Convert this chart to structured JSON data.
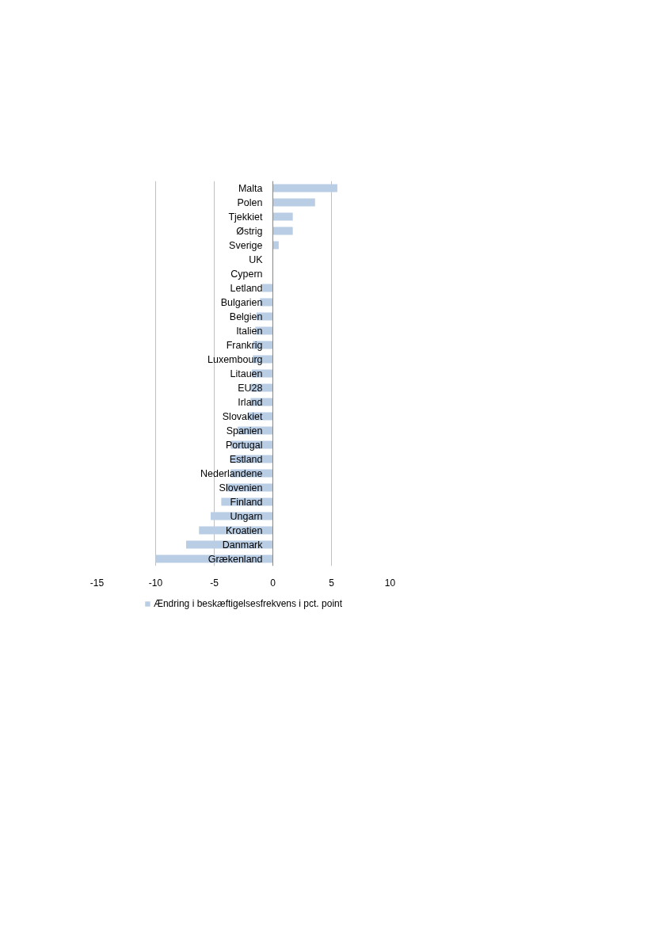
{
  "chart_data": {
    "type": "bar",
    "orientation": "horizontal",
    "categories": [
      "Malta",
      "Polen",
      "Tjekkiet",
      "Østrig",
      "Sverige",
      "UK",
      "Cypern",
      "Letland",
      "Bulgarien",
      "Belgien",
      "Italien",
      "Frankrig",
      "Luxembourg",
      "Litauen",
      "EU28",
      "Irland",
      "Slovakiet",
      "Spanien",
      "Portugal",
      "Estland",
      "Nederlandene",
      "Slovenien",
      "Finland",
      "Ungarn",
      "Kroatien",
      "Danmark",
      "Grækenland"
    ],
    "series": [
      {
        "name": "Ændring i beskæftigelsesfrekvens i pct. point",
        "color": "#b9cde5",
        "values": [
          5.5,
          3.6,
          1.7,
          1.7,
          0.5,
          0,
          0,
          -0.9,
          -1.1,
          -1.4,
          -1.5,
          -1.7,
          -1.7,
          -1.8,
          -1.9,
          -1.9,
          -2.1,
          -3.0,
          -3.6,
          -3.6,
          -3.6,
          -4.0,
          -4.4,
          -5.3,
          -6.3,
          -7.4,
          -10.0
        ]
      }
    ],
    "xlim": [
      -15,
      10
    ],
    "xticks": [
      -15,
      -10,
      -5,
      0,
      5,
      10
    ],
    "grid": "x",
    "legend": "bottom"
  }
}
